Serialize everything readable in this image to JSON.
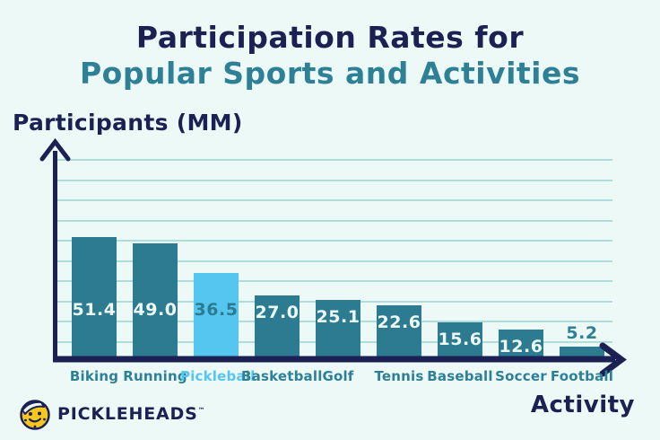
{
  "title": {
    "line1": "Participation Rates for",
    "line2": "Popular Sports and Activities"
  },
  "logo": {
    "text": "PICKLEHEADS",
    "trademark": "™"
  },
  "colors": {
    "background": "#ecf9f6",
    "navy": "#1b2153",
    "teal": "#2e8096",
    "bar_dark": "#2d7b90",
    "bar_highlight": "#55c6ef",
    "value_on_dark": "#ecf9f6",
    "gridline": "#a5d8d6",
    "logo_yellow": "#f7c720"
  },
  "chart_data": {
    "type": "bar",
    "title": "Participation Rates for Popular Sports and Activities",
    "categories": [
      "Biking",
      "Running",
      "Pickleball",
      "Basketball",
      "Golf",
      "Tennis",
      "Baseball",
      "Soccer",
      "Football"
    ],
    "values": [
      51.4,
      49.0,
      36.5,
      27.0,
      25.1,
      22.6,
      15.6,
      12.6,
      5.2
    ],
    "value_labels": [
      "51.4",
      "49.0",
      "36.5",
      "27.0",
      "25.1",
      "22.6",
      "15.6",
      "12.6",
      "5.2"
    ],
    "highlight_index": 2,
    "highlight_category": "Pickleball",
    "xlabel": "Activity",
    "ylabel": "Participants (MM)",
    "ylim": [
      0,
      60
    ],
    "units": "millions of participants",
    "grid": "horizontal gridlines, no tick labels",
    "legend": "none"
  }
}
